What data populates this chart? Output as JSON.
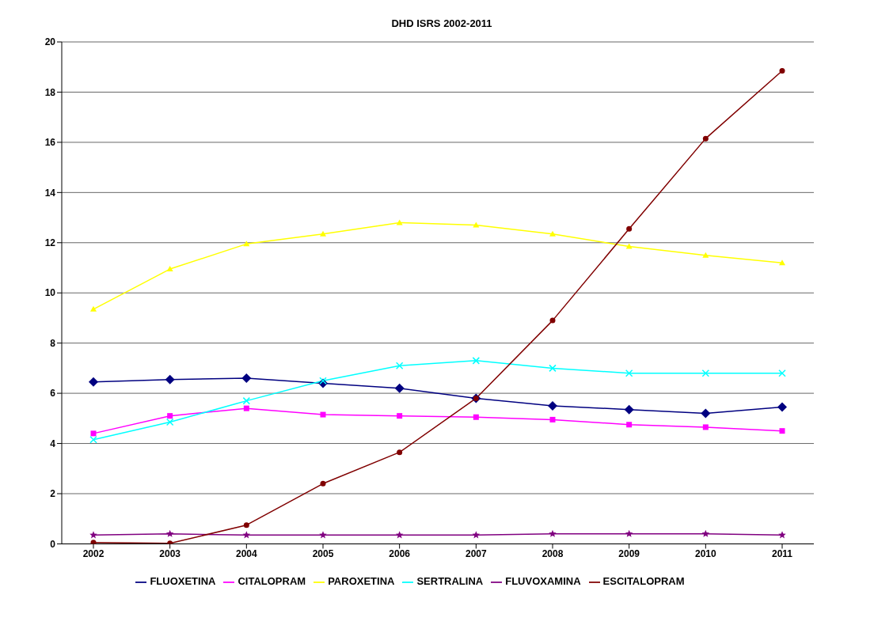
{
  "chart_data": {
    "type": "line",
    "title": "DHD ISRS 2002-2011",
    "categories": [
      "2002",
      "2003",
      "2004",
      "2005",
      "2006",
      "2007",
      "2008",
      "2009",
      "2010",
      "2011"
    ],
    "series": [
      {
        "name": "FLUOXETINA",
        "color": "#000080",
        "marker": "diamond",
        "values": [
          6.45,
          6.55,
          6.6,
          6.4,
          6.2,
          5.8,
          5.5,
          5.35,
          5.2,
          5.45
        ]
      },
      {
        "name": "CITALOPRAM",
        "color": "#ff00ff",
        "marker": "square",
        "values": [
          4.4,
          5.1,
          5.4,
          5.15,
          5.1,
          5.05,
          4.95,
          4.75,
          4.65,
          4.5
        ]
      },
      {
        "name": "PAROXETINA",
        "color": "#ffff00",
        "marker": "triangle",
        "values": [
          9.35,
          10.95,
          11.95,
          12.35,
          12.8,
          12.7,
          12.35,
          11.85,
          11.5,
          11.2
        ]
      },
      {
        "name": "SERTRALINA",
        "color": "#00ffff",
        "marker": "cross",
        "values": [
          4.15,
          4.85,
          5.7,
          6.5,
          7.1,
          7.3,
          7.0,
          6.8,
          6.8,
          6.8
        ]
      },
      {
        "name": "FLUVOXAMINA",
        "color": "#800080",
        "marker": "star",
        "values": [
          0.35,
          0.4,
          0.35,
          0.35,
          0.35,
          0.35,
          0.4,
          0.4,
          0.4,
          0.35
        ]
      },
      {
        "name": "ESCITALOPRAM",
        "color": "#800000",
        "marker": "circle",
        "values": [
          0.05,
          0.02,
          0.75,
          2.4,
          3.65,
          5.8,
          8.9,
          12.55,
          16.15,
          18.85
        ]
      }
    ],
    "ylim": [
      0,
      20
    ],
    "yticks": [
      0,
      2,
      4,
      6,
      8,
      10,
      12,
      14,
      16,
      18,
      20
    ],
    "grid": "y",
    "legend": "bottom"
  }
}
